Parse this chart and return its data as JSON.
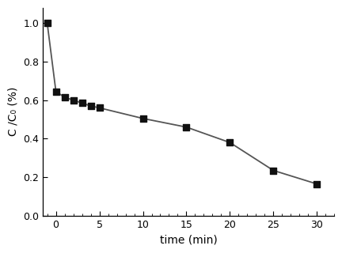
{
  "x": [
    -1,
    0,
    1,
    2,
    3,
    4,
    5,
    10,
    15,
    20,
    25,
    30
  ],
  "y": [
    1.0,
    0.645,
    0.615,
    0.6,
    0.585,
    0.57,
    0.56,
    0.505,
    0.46,
    0.38,
    0.235,
    0.165
  ],
  "xlabel": "time (min)",
  "ylabel": "C /C₀ (%)",
  "xlim": [
    -1.5,
    32
  ],
  "ylim": [
    0.0,
    1.08
  ],
  "xticks": [
    0,
    5,
    10,
    15,
    20,
    25,
    30
  ],
  "yticks": [
    0.0,
    0.2,
    0.4,
    0.6,
    0.8,
    1.0
  ],
  "line_color": "#555555",
  "marker_color": "#111111",
  "marker": "s",
  "marker_size": 6,
  "line_width": 1.3,
  "bg_color": "#ffffff",
  "spine_color": "#000000",
  "tick_color": "#000000",
  "figsize": [
    4.32,
    3.2
  ],
  "dpi": 100
}
